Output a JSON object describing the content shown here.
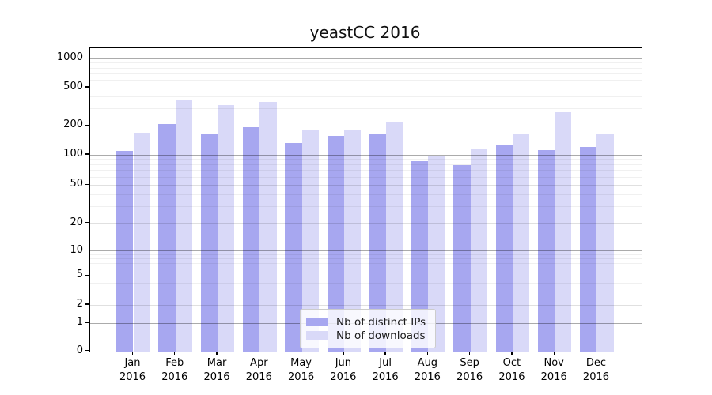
{
  "title": "yeastCC 2016",
  "chart_data": {
    "type": "bar",
    "title": "yeastCC 2016",
    "yscale": "symlog",
    "y_ticks": [
      1000,
      500,
      200,
      100,
      50,
      20,
      10,
      5,
      2,
      1,
      0
    ],
    "ylim": [
      0,
      1300
    ],
    "grid": true,
    "categories": [
      "Jan",
      "Feb",
      "Mar",
      "Apr",
      "May",
      "Jun",
      "Jul",
      "Aug",
      "Sep",
      "Oct",
      "Nov",
      "Dec"
    ],
    "year_label": "2016",
    "series": [
      {
        "name": "Nb of distinct IPs",
        "color": "#a7a7f0",
        "values": [
          110,
          209,
          166,
          194,
          133,
          160,
          168,
          88,
          80,
          127,
          114,
          122
        ]
      },
      {
        "name": "Nb of downloads",
        "color": "#d9d9f8",
        "values": [
          170,
          383,
          331,
          360,
          182,
          184,
          220,
          98,
          116,
          168,
          278,
          164
        ]
      }
    ],
    "legend_position": "lower center"
  },
  "colors": {
    "ips_bar": "#a7a7f0",
    "downloads_bar": "#d9d9f8",
    "grid_decade": "rgba(0,0,0,0.33)",
    "grid_labeled": "rgba(0,0,0,0.12)",
    "grid_minor": "rgba(0,0,0,0.06)",
    "spine": "#000000",
    "legend_border": "#cccccc",
    "text": "#000000"
  }
}
